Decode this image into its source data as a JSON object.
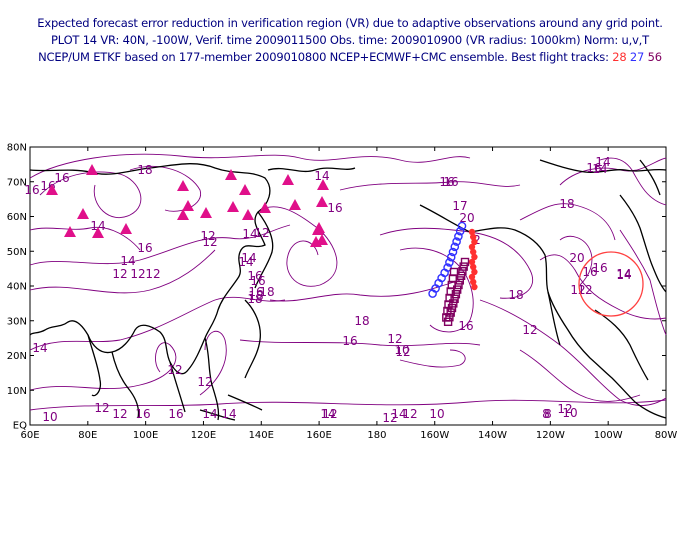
{
  "header": {
    "line1": "Expected forecast error reduction in verification region (VR) due to adaptive observations around any grid point.",
    "line2": "PLOT 14 VR: 40N, -100W, Verif. time 2009011500 Obs. time: 2009010900 (VR radius: 1000km) Norm: u,v,T",
    "line3_prefix": "NCEP/UM ETKF based on 177-member 2009010800 NCEP+ECMWF+CMC ensemble. Best flight tracks:",
    "track_a": "28",
    "track_b": "27",
    "track_c": "56"
  },
  "map": {
    "lat_labels": [
      "80N",
      "70N",
      "60N",
      "50N",
      "40N",
      "30N",
      "20N",
      "10N",
      "EQ"
    ],
    "lon_labels": [
      "60E",
      "80E",
      "100E",
      "120E",
      "140E",
      "160E",
      "180",
      "160W",
      "140W",
      "120W",
      "100W",
      "80W"
    ],
    "contour_labels": [
      {
        "text": "16"
      },
      {
        "text": "18"
      },
      {
        "text": "16"
      },
      {
        "text": "14"
      },
      {
        "text": "12"
      },
      {
        "text": "14"
      },
      {
        "text": "16"
      },
      {
        "text": "12"
      },
      {
        "text": "14"
      },
      {
        "text": "16"
      },
      {
        "text": "18"
      },
      {
        "text": "14"
      },
      {
        "text": "16"
      },
      {
        "text": "16"
      },
      {
        "text": "18"
      },
      {
        "text": "16"
      },
      {
        "text": "12"
      },
      {
        "text": "10"
      },
      {
        "text": "14"
      },
      {
        "text": "12"
      },
      {
        "text": "12"
      },
      {
        "text": "12"
      },
      {
        "text": "10"
      },
      {
        "text": "12"
      },
      {
        "text": "16"
      },
      {
        "text": "14"
      },
      {
        "text": "14"
      },
      {
        "text": "12"
      },
      {
        "text": "10"
      },
      {
        "text": "8"
      },
      {
        "text": "12"
      },
      {
        "text": "10"
      },
      {
        "text": "18"
      },
      {
        "text": "16"
      },
      {
        "text": "12"
      },
      {
        "text": "16"
      },
      {
        "text": "14"
      },
      {
        "text": "16"
      },
      {
        "text": "14"
      },
      {
        "text": "20"
      },
      {
        "text": "16"
      },
      {
        "text": "14"
      },
      {
        "text": "12"
      },
      {
        "text": "12"
      },
      {
        "text": "18"
      },
      {
        "text": "12"
      },
      {
        "text": "16"
      },
      {
        "text": "18"
      },
      {
        "text": "16"
      },
      {
        "text": "14"
      },
      {
        "text": "12"
      },
      {
        "text": "14"
      },
      {
        "text": "14"
      },
      {
        "text": "12"
      },
      {
        "text": "18"
      },
      {
        "text": "12"
      },
      {
        "text": "16"
      },
      {
        "text": "14"
      },
      {
        "text": "12"
      },
      {
        "text": "12"
      },
      {
        "text": "16"
      },
      {
        "text": "17"
      },
      {
        "text": "20"
      },
      {
        "text": "2"
      },
      {
        "text": "12"
      },
      {
        "text": "8"
      },
      {
        "text": "16"
      },
      {
        "text": "14"
      }
    ],
    "colors": {
      "contour": "#800080",
      "coast": "#000000",
      "triangle": "#e0108a",
      "track28": "#ff3030",
      "track27": "#3030ff",
      "track56": "#800060",
      "vr_circle": "#ff4040"
    }
  }
}
